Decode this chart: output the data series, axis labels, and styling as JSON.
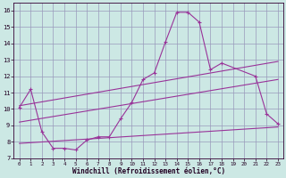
{
  "bg_color": "#cce8e4",
  "grid_color": "#9999bb",
  "line_color": "#993399",
  "xlim": [
    -0.5,
    23.5
  ],
  "ylim": [
    7,
    16.5
  ],
  "xticks": [
    0,
    1,
    2,
    3,
    4,
    5,
    6,
    7,
    8,
    9,
    10,
    11,
    12,
    13,
    14,
    15,
    16,
    17,
    18,
    19,
    20,
    21,
    22,
    23
  ],
  "yticks": [
    7,
    8,
    9,
    10,
    11,
    12,
    13,
    14,
    15,
    16
  ],
  "xlabel": "Windchill (Refroidissement éolien,°C)",
  "spike_x": [
    0,
    1,
    2,
    3,
    4,
    5,
    6,
    7,
    8,
    9,
    10,
    11,
    12,
    13,
    14,
    15,
    16,
    17,
    18,
    21,
    22,
    23
  ],
  "spike_y": [
    10.1,
    11.2,
    8.6,
    7.6,
    7.6,
    7.5,
    8.1,
    8.3,
    8.3,
    9.4,
    10.4,
    11.8,
    12.2,
    14.1,
    15.9,
    15.9,
    15.3,
    12.4,
    12.8,
    12.0,
    9.7,
    9.1
  ],
  "line1_x": [
    0,
    23
  ],
  "line1_y": [
    7.9,
    8.9
  ],
  "line2_x": [
    0,
    23
  ],
  "line2_y": [
    9.2,
    11.8
  ],
  "line3_x": [
    0,
    23
  ],
  "line3_y": [
    10.2,
    12.9
  ]
}
